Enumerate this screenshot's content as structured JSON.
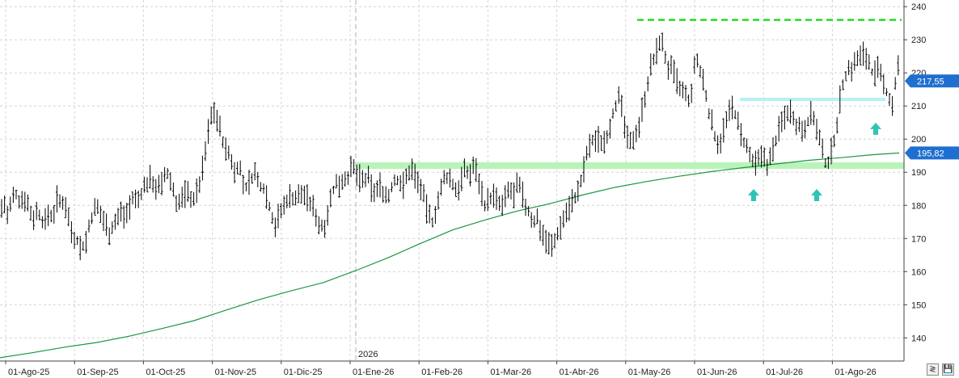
{
  "chart_data": {
    "type": "ohlc",
    "x_labels": [
      "01-Ago-25",
      "01-Sep-25",
      "01-Oct-25",
      "01-Nov-25",
      "01-Dic-25",
      "01-Ene-26",
      "01-Feb-26",
      "01-Mar-26",
      "01-Abr-26",
      "01-May-26",
      "01-Jun-26",
      "01-Jul-26",
      "01-Ago-26"
    ],
    "year_marker": "2026",
    "y_ticks": [
      "140",
      "150",
      "160",
      "170",
      "180",
      "190",
      "200",
      "210",
      "220",
      "230",
      "240"
    ],
    "ylim": [
      133,
      242
    ],
    "last_price": "217,55",
    "ma_value": "195,82",
    "moving_average_color": "#1a9641",
    "bar_color": "#000000",
    "resistance_level": 236,
    "resistance_color": "#22dd22",
    "support_zone": [
      191,
      193
    ],
    "support_color": "#b9f3b9",
    "upper_zone": [
      211.5,
      212.5
    ],
    "upper_zone_color": "#b8f0f5",
    "arrow_color": "#2ec4b6",
    "price_path": [
      [
        0,
        178
      ],
      [
        5,
        181
      ],
      [
        10,
        176
      ],
      [
        15,
        182
      ],
      [
        20,
        183
      ],
      [
        25,
        181
      ],
      [
        30,
        183
      ],
      [
        35,
        180
      ],
      [
        40,
        176
      ],
      [
        45,
        178
      ],
      [
        50,
        177
      ],
      [
        55,
        174
      ],
      [
        60,
        178
      ],
      [
        65,
        176
      ],
      [
        70,
        182
      ],
      [
        75,
        180
      ],
      [
        80,
        182
      ],
      [
        85,
        176
      ],
      [
        90,
        171
      ],
      [
        95,
        170
      ],
      [
        100,
        167
      ],
      [
        105,
        168
      ],
      [
        110,
        173
      ],
      [
        115,
        178
      ],
      [
        120,
        179
      ],
      [
        125,
        177
      ],
      [
        130,
        175
      ],
      [
        135,
        172
      ],
      [
        140,
        174
      ],
      [
        145,
        176
      ],
      [
        150,
        178
      ],
      [
        155,
        177
      ],
      [
        160,
        180
      ],
      [
        165,
        182
      ],
      [
        170,
        181
      ],
      [
        175,
        184
      ],
      [
        180,
        186
      ],
      [
        185,
        188
      ],
      [
        190,
        187
      ],
      [
        195,
        185
      ],
      [
        200,
        186
      ],
      [
        205,
        190
      ],
      [
        210,
        188
      ],
      [
        215,
        184
      ],
      [
        220,
        180
      ],
      [
        225,
        182
      ],
      [
        230,
        184
      ],
      [
        235,
        183
      ],
      [
        240,
        182
      ],
      [
        245,
        185
      ],
      [
        250,
        190
      ],
      [
        255,
        198
      ],
      [
        260,
        206
      ],
      [
        265,
        209
      ],
      [
        270,
        205
      ],
      [
        275,
        200
      ],
      [
        280,
        196
      ],
      [
        285,
        195
      ],
      [
        290,
        190
      ],
      [
        295,
        193
      ],
      [
        300,
        187
      ],
      [
        305,
        185
      ],
      [
        310,
        188
      ],
      [
        315,
        190
      ],
      [
        320,
        186
      ],
      [
        325,
        186
      ],
      [
        330,
        183
      ],
      [
        335,
        178
      ],
      [
        340,
        174
      ],
      [
        345,
        177
      ],
      [
        350,
        179
      ],
      [
        355,
        182
      ],
      [
        360,
        183
      ],
      [
        365,
        182
      ],
      [
        370,
        183
      ],
      [
        375,
        184
      ],
      [
        380,
        182
      ],
      [
        385,
        180
      ],
      [
        390,
        178
      ],
      [
        395,
        174
      ],
      [
        400,
        173
      ],
      [
        405,
        178
      ],
      [
        410,
        183
      ],
      [
        415,
        186
      ],
      [
        420,
        187
      ],
      [
        425,
        188
      ],
      [
        430,
        189
      ],
      [
        435,
        191
      ],
      [
        440,
        190
      ],
      [
        445,
        188
      ],
      [
        450,
        187
      ],
      [
        455,
        188
      ],
      [
        460,
        185
      ],
      [
        465,
        184
      ],
      [
        470,
        186
      ],
      [
        475,
        184
      ],
      [
        480,
        182
      ],
      [
        485,
        186
      ],
      [
        490,
        188
      ],
      [
        495,
        187
      ],
      [
        500,
        186
      ],
      [
        505,
        190
      ],
      [
        510,
        191
      ],
      [
        515,
        188
      ],
      [
        520,
        186
      ],
      [
        525,
        181
      ],
      [
        530,
        177
      ],
      [
        535,
        175
      ],
      [
        540,
        180
      ],
      [
        545,
        184
      ],
      [
        550,
        188
      ],
      [
        555,
        189
      ],
      [
        560,
        186
      ],
      [
        565,
        184
      ],
      [
        570,
        188
      ],
      [
        575,
        190
      ],
      [
        580,
        189
      ],
      [
        585,
        192
      ],
      [
        590,
        190
      ],
      [
        595,
        185
      ],
      [
        600,
        180
      ],
      [
        605,
        182
      ],
      [
        610,
        183
      ],
      [
        615,
        181
      ],
      [
        620,
        179
      ],
      [
        625,
        182
      ],
      [
        630,
        185
      ],
      [
        635,
        183
      ],
      [
        640,
        186
      ],
      [
        645,
        184
      ],
      [
        650,
        180
      ],
      [
        655,
        177
      ],
      [
        660,
        175
      ],
      [
        665,
        176
      ],
      [
        670,
        172
      ],
      [
        675,
        170
      ],
      [
        680,
        168
      ],
      [
        685,
        168
      ],
      [
        690,
        172
      ],
      [
        695,
        175
      ],
      [
        700,
        178
      ],
      [
        705,
        180
      ],
      [
        710,
        182
      ],
      [
        715,
        184
      ],
      [
        720,
        188
      ],
      [
        725,
        195
      ],
      [
        730,
        198
      ],
      [
        735,
        200
      ],
      [
        740,
        200
      ],
      [
        745,
        199
      ],
      [
        750,
        201
      ],
      [
        755,
        205
      ],
      [
        760,
        210
      ],
      [
        765,
        212
      ],
      [
        770,
        208
      ],
      [
        775,
        200
      ],
      [
        780,
        198
      ],
      [
        785,
        202
      ],
      [
        790,
        204
      ],
      [
        795,
        210
      ],
      [
        800,
        216
      ],
      [
        805,
        222
      ],
      [
        810,
        224
      ],
      [
        815,
        230
      ],
      [
        820,
        228
      ],
      [
        825,
        222
      ],
      [
        830,
        221
      ],
      [
        835,
        219
      ],
      [
        840,
        215
      ],
      [
        845,
        214
      ],
      [
        850,
        212
      ],
      [
        855,
        212
      ],
      [
        860,
        226
      ],
      [
        865,
        220
      ],
      [
        870,
        218
      ],
      [
        875,
        210
      ],
      [
        880,
        205
      ],
      [
        885,
        200
      ],
      [
        890,
        199
      ],
      [
        895,
        203
      ],
      [
        900,
        206
      ],
      [
        905,
        210
      ],
      [
        910,
        207
      ],
      [
        915,
        202
      ],
      [
        920,
        199
      ],
      [
        925,
        196
      ],
      [
        930,
        193
      ],
      [
        935,
        192
      ],
      [
        940,
        194
      ],
      [
        945,
        195
      ],
      [
        950,
        192
      ],
      [
        955,
        196
      ],
      [
        960,
        200
      ],
      [
        965,
        204
      ],
      [
        970,
        207
      ],
      [
        975,
        209
      ],
      [
        980,
        208
      ],
      [
        985,
        205
      ],
      [
        990,
        203
      ],
      [
        995,
        204
      ],
      [
        1000,
        206
      ],
      [
        1005,
        208
      ],
      [
        1010,
        203
      ],
      [
        1015,
        198
      ],
      [
        1020,
        193
      ],
      [
        1025,
        193
      ],
      [
        1030,
        198
      ],
      [
        1035,
        205
      ],
      [
        1040,
        214
      ],
      [
        1045,
        219
      ],
      [
        1050,
        221
      ],
      [
        1055,
        222
      ],
      [
        1060,
        224
      ],
      [
        1065,
        225
      ],
      [
        1070,
        226
      ],
      [
        1075,
        223
      ],
      [
        1080,
        219
      ],
      [
        1085,
        221
      ],
      [
        1090,
        218
      ],
      [
        1095,
        215
      ],
      [
        1100,
        212
      ],
      [
        1105,
        210
      ],
      [
        1110,
        225
      ],
      [
        1112,
        217.55
      ]
    ],
    "ma_path": [
      [
        0,
        134
      ],
      [
        40,
        135.5
      ],
      [
        80,
        137.2
      ],
      [
        120,
        138.6
      ],
      [
        160,
        140.5
      ],
      [
        200,
        142.8
      ],
      [
        240,
        145.2
      ],
      [
        280,
        148.4
      ],
      [
        320,
        151.5
      ],
      [
        360,
        154.2
      ],
      [
        400,
        156.7
      ],
      [
        440,
        160.3
      ],
      [
        480,
        164.2
      ],
      [
        520,
        168.5
      ],
      [
        560,
        172.6
      ],
      [
        600,
        175.6
      ],
      [
        640,
        178.3
      ],
      [
        680,
        180.5
      ],
      [
        720,
        183.1
      ],
      [
        760,
        185.4
      ],
      [
        800,
        187.2
      ],
      [
        840,
        188.8
      ],
      [
        880,
        190.2
      ],
      [
        920,
        191.4
      ],
      [
        960,
        192.5
      ],
      [
        1000,
        193.6
      ],
      [
        1040,
        194.4
      ],
      [
        1080,
        195.3
      ],
      [
        1112,
        195.82
      ]
    ]
  },
  "arrows": [
    {
      "x": 932,
      "y_value": 183
    },
    {
      "x": 1010,
      "y_value": 183
    },
    {
      "x": 1083,
      "y_value": 203
    }
  ],
  "buttons": {
    "resize_icon": "≷",
    "save_icon": "💾"
  }
}
